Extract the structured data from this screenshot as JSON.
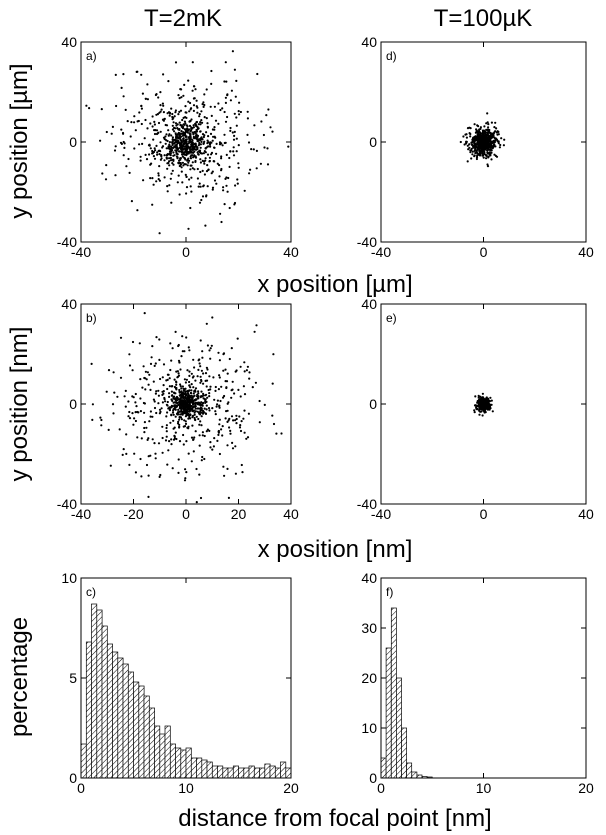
{
  "column_titles": [
    "T=2mK",
    "T=100µK"
  ],
  "row_labels": {
    "row1_ylabel": "y position [µm]",
    "row1_xlabel": "x position [µm]",
    "row2_ylabel": "y position [nm]",
    "row2_xlabel": "x position [nm]",
    "row3_ylabel": "percentage",
    "row3_xlabel": "distance from focal point [nm]"
  },
  "colors": {
    "ink": "#000000",
    "background": "#ffffff"
  },
  "chart_data": [
    {
      "id": "a",
      "type": "scatter",
      "panel_label": "a)",
      "xlim": [
        -40,
        40
      ],
      "ylim": [
        -40,
        40
      ],
      "xticks": [
        "-40",
        "0",
        "40"
      ],
      "yticks": [
        "-40",
        "0",
        "40"
      ],
      "distribution": {
        "shape": "gaussian-cloud",
        "center": [
          0,
          0
        ],
        "sigma": 13,
        "core_sigma": 4,
        "points": 900
      }
    },
    {
      "id": "d",
      "type": "scatter",
      "panel_label": "d)",
      "xlim": [
        -40,
        40
      ],
      "ylim": [
        -40,
        40
      ],
      "xticks": [
        "-40",
        "0",
        "40"
      ],
      "yticks": [
        "-40",
        "0",
        "40"
      ],
      "distribution": {
        "shape": "gaussian-cloud",
        "center": [
          0,
          0
        ],
        "sigma": 3,
        "core_sigma": 1.5,
        "points": 700
      }
    },
    {
      "id": "b",
      "type": "scatter",
      "panel_label": "b)",
      "xlim": [
        -40,
        40
      ],
      "ylim": [
        -40,
        40
      ],
      "xticks": [
        "-40",
        "-20",
        "0",
        "20",
        "40"
      ],
      "yticks": [
        "-40",
        "0",
        "40"
      ],
      "distribution": {
        "shape": "gaussian-cloud",
        "center": [
          0,
          0
        ],
        "sigma": 14,
        "core_sigma": 3,
        "points": 850
      }
    },
    {
      "id": "e",
      "type": "scatter",
      "panel_label": "e)",
      "xlim": [
        -40,
        40
      ],
      "ylim": [
        -40,
        40
      ],
      "xticks": [
        "-40",
        "0",
        "40"
      ],
      "yticks": [
        "-40",
        "0",
        "40"
      ],
      "distribution": {
        "shape": "gaussian-cloud",
        "center": [
          0,
          0
        ],
        "sigma": 1.4,
        "core_sigma": 0.9,
        "points": 400
      }
    },
    {
      "id": "c",
      "type": "bar",
      "panel_label": "c)",
      "xlim": [
        0,
        20
      ],
      "ylim": [
        0,
        10
      ],
      "xticks": [
        "0",
        "10",
        "20"
      ],
      "yticks": [
        "0",
        "5",
        "10"
      ],
      "bin_width": 0.5,
      "bin_starts": [
        0,
        0.5,
        1,
        1.5,
        2,
        2.5,
        3,
        3.5,
        4,
        4.5,
        5,
        5.5,
        6,
        6.5,
        7,
        7.5,
        8,
        8.5,
        9,
        9.5,
        10,
        10.5,
        11,
        11.5,
        12,
        12.5,
        13,
        13.5,
        14,
        14.5,
        15,
        15.5,
        16,
        16.5,
        17,
        17.5,
        18,
        18.5,
        19,
        19.5
      ],
      "values": [
        1.7,
        6.8,
        8.7,
        8.4,
        7.6,
        6.7,
        6.3,
        6.0,
        5.7,
        5.3,
        4.8,
        4.6,
        4.1,
        3.5,
        2.6,
        2.2,
        2.6,
        1.7,
        1.5,
        1.4,
        1.5,
        1.0,
        1.0,
        0.9,
        0.8,
        0.6,
        0.6,
        0.5,
        0.5,
        0.6,
        0.5,
        0.5,
        0.6,
        0.5,
        0.5,
        0.7,
        0.6,
        0.5,
        0.8,
        0.5
      ]
    },
    {
      "id": "f",
      "type": "bar",
      "panel_label": "f)",
      "xlim": [
        0,
        20
      ],
      "ylim": [
        0,
        40
      ],
      "xticks": [
        "0",
        "10",
        "20"
      ],
      "yticks": [
        "0",
        "10",
        "20",
        "30",
        "40"
      ],
      "bin_width": 0.5,
      "bin_starts": [
        0,
        0.5,
        1,
        1.5,
        2,
        2.5,
        3,
        3.5,
        4,
        4.5
      ],
      "values": [
        4.0,
        26.0,
        34.0,
        20.0,
        10.0,
        3.0,
        1.2,
        0.6,
        0.3,
        0.2
      ]
    }
  ]
}
